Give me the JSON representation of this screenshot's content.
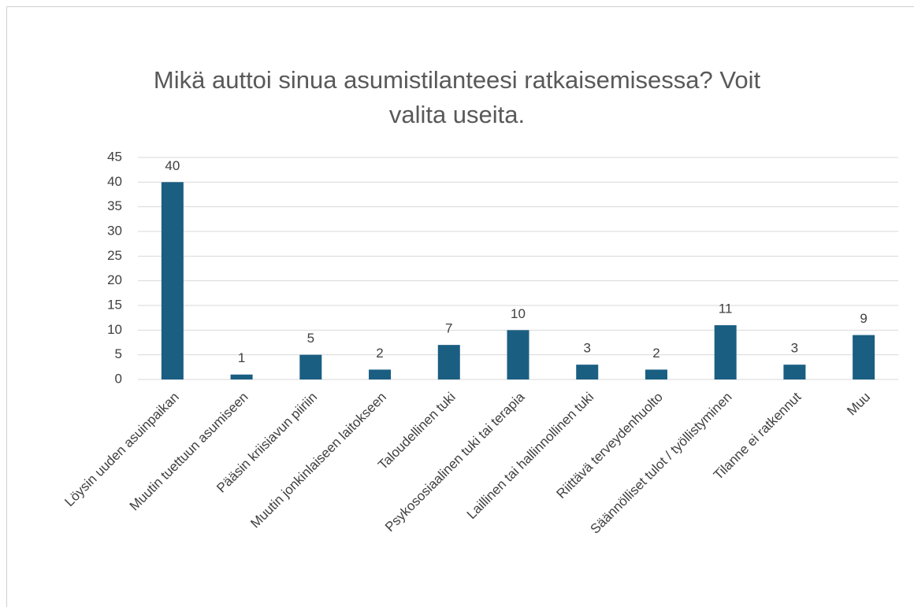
{
  "chart_data": {
    "type": "bar",
    "title": "Mikä auttoi sinua asumistilanteesi ratkaisemisessa? Voit valita useita.",
    "categories": [
      "Löysin uuden asuinpaikan",
      "Muutin tuettuun asumiseen",
      "Pääsin kriisiavun piiriin",
      "Muutin jonkinlaiseen laitokseen",
      "Taloudellinen tuki",
      "Psykososiaalinen tuki tai terapia",
      "Laillinen tai hallinnollinen tuki",
      "Riittävä terveydenhuolto",
      "Säännölliset tulot / työllistyminen",
      "Tilanne ei ratkennut",
      "Muu"
    ],
    "values": [
      40,
      1,
      5,
      2,
      7,
      10,
      3,
      2,
      11,
      3,
      9
    ],
    "color": "#1a5e82",
    "ylim": [
      0,
      45
    ],
    "yticks": [
      0,
      5,
      10,
      15,
      20,
      25,
      30,
      35,
      40,
      45
    ],
    "grid": true
  }
}
